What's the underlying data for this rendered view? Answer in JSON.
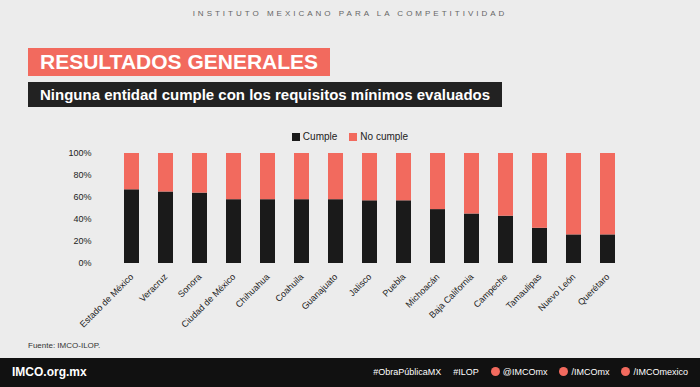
{
  "page": {
    "header": "INSTITUTO MEXICANO PARA LA COMPETITIVIDAD",
    "footer": {
      "logo": "IMCO.org.mx",
      "hashtags": [
        "#ObraPúblicaMX",
        "#ILOP"
      ],
      "social": [
        "@IMCOmx",
        "/IMCOmx",
        "/IMCOmexico"
      ]
    }
  },
  "chart_data": {
    "type": "bar",
    "title": "RESULTADOS GENERALES",
    "subtitle": "Ninguna entidad cumple con los requisitos mínimos evaluados",
    "source": "Fuente: IMCO-ILOP.",
    "categories": [
      "Estado de México",
      "Veracruz",
      "Sonora",
      "Ciudad de México",
      "Chihuahua",
      "Coahuila",
      "Guanajuato",
      "Jalisco",
      "Puebla",
      "Michoacán",
      "Baja California",
      "Campeche",
      "Tamaulipas",
      "Nuevo León",
      "Querétaro"
    ],
    "series": [
      {
        "name": "Cumple",
        "color": "#1a1a1a",
        "values": [
          67,
          65,
          64,
          58,
          58,
          58,
          58,
          57,
          57,
          49,
          45,
          43,
          32,
          26,
          26
        ]
      },
      {
        "name": "No cumple",
        "color": "#f26a5e",
        "values": [
          33,
          35,
          36,
          42,
          42,
          42,
          42,
          43,
          43,
          51,
          55,
          57,
          68,
          74,
          74
        ]
      }
    ],
    "stacked": true,
    "ylim": [
      0,
      100
    ],
    "yticks": [
      {
        "value": 0,
        "label": "0%"
      },
      {
        "value": 20,
        "label": "20%"
      },
      {
        "value": 40,
        "label": "40%"
      },
      {
        "value": 60,
        "label": "60%"
      },
      {
        "value": 80,
        "label": "80%"
      },
      {
        "value": 100,
        "label": "100%"
      }
    ],
    "grid": false,
    "legend": "top"
  }
}
